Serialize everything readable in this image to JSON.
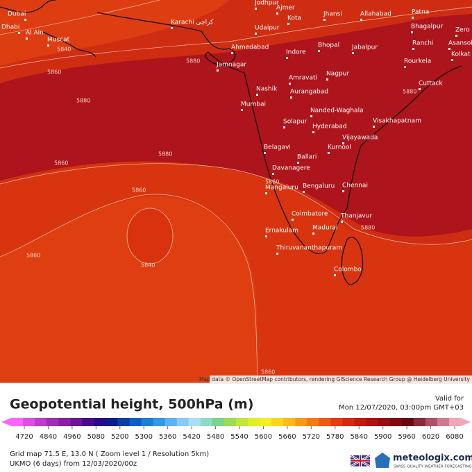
{
  "map": {
    "cities": [
      "Jodhpur",
      "Ajmer",
      "Kota",
      "Jhansi",
      "Allahabad",
      "Patna",
      "Dubai",
      "Dhabi",
      "Al Ain",
      "Karachi کراچی",
      "Udaipur",
      "Bhagalpur",
      "Zero",
      "Muscat",
      "Ahmedabad",
      "Indore",
      "Bhopal",
      "Jabalpur",
      "Ranchi",
      "Asansol",
      "Kolkat",
      "Jamnagar",
      "Rourkela",
      "Amravati",
      "Nagpur",
      "Cuttack",
      "Nashik",
      "Aurangabad",
      "Mumbai",
      "Nanded-Waghala",
      "Visakhapatnam",
      "Solapur",
      "Hyderabad",
      "Vijayawada",
      "Belagavi",
      "Kurnool",
      "Ballari",
      "Davanagere",
      "Mangaluru",
      "Bengaluru",
      "Chennai",
      "Coimbatore",
      "Thanjavur",
      "Ernakulam",
      "Madurai",
      "Thiruvananthapuram",
      "Colombo"
    ],
    "contour_labels": [
      "5840",
      "5860",
      "5880",
      "5880",
      "5880",
      "5880",
      "5860",
      "5860",
      "5860",
      "5880",
      "5860",
      "5840",
      "5860"
    ],
    "attribution": "Map data © OpenStreetMap contributors, rendering GIScience Research Group @ Heidelberg University"
  },
  "legend": {
    "title": "Geopotential height, 500hPa (m)",
    "valid_label": "Valid for",
    "valid_time": "Mon 12/07/2020, 03:00pm GMT+03",
    "ticks": [
      "4720",
      "4840",
      "4960",
      "5080",
      "5200",
      "5300",
      "5360",
      "5420",
      "5480",
      "5540",
      "5600",
      "5660",
      "5720",
      "5780",
      "5840",
      "5900",
      "5960",
      "6020",
      "6080"
    ]
  },
  "footer": {
    "grid": "Grid map 71.5 E, 13.0 N ( Zoom level 1 / Resolution 5km)",
    "run": "UKMO (6 days) from  12/03/2020/00z",
    "brand": "meteologix.com",
    "tagline": "SWISS QUALITY WEATHER FORECASTING"
  }
}
